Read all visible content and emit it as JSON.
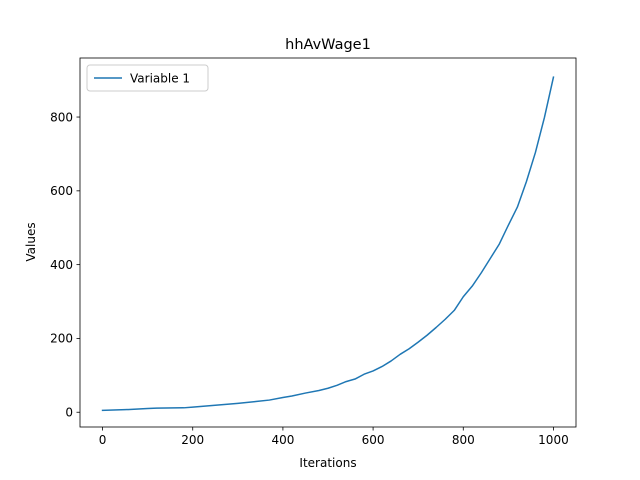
{
  "chart_data": {
    "type": "line",
    "title": "hhAvWage1",
    "xlabel": "Iterations",
    "ylabel": "Values",
    "xlim": [
      -50,
      1050
    ],
    "ylim": [
      -40,
      960
    ],
    "xticks": [
      0,
      200,
      400,
      600,
      800,
      1000
    ],
    "yticks": [
      0,
      200,
      400,
      600,
      800
    ],
    "grid": false,
    "legend": {
      "placement": "top-left"
    },
    "series": [
      {
        "name": "Variable 1",
        "color": "#1f77b4",
        "x": [
          0,
          50,
          100,
          120,
          180,
          200,
          250,
          300,
          340,
          370,
          400,
          420,
          450,
          480,
          500,
          520,
          540,
          560,
          580,
          600,
          620,
          640,
          660,
          680,
          700,
          720,
          740,
          760,
          780,
          800,
          820,
          840,
          860,
          880,
          900,
          920,
          940,
          960,
          980,
          1000
        ],
        "y": [
          5,
          7,
          10,
          11,
          12,
          14,
          19,
          24,
          29,
          33,
          40,
          44,
          52,
          59,
          65,
          73,
          83,
          90,
          103,
          112,
          124,
          139,
          157,
          172,
          190,
          209,
          230,
          252,
          276,
          313,
          342,
          378,
          417,
          456,
          507,
          556,
          625,
          704,
          799,
          908
        ]
      }
    ]
  }
}
